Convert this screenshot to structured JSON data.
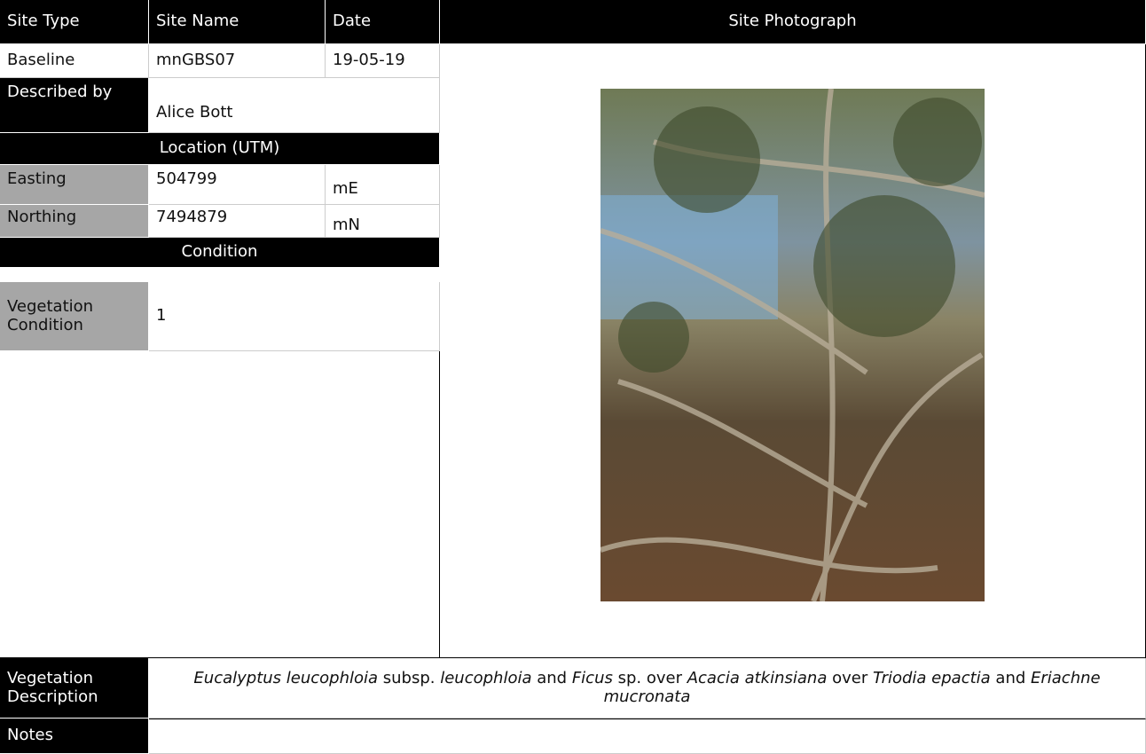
{
  "header": {
    "site_type": "Site Type",
    "site_name": "Site Name",
    "date": "Date",
    "site_photograph": "Site Photograph"
  },
  "site": {
    "type": "Baseline",
    "name": "mnGBS07",
    "date": "19-05-19"
  },
  "described_by": {
    "label": "Described by",
    "value": "Alice Bott"
  },
  "location": {
    "title": "Location (UTM)",
    "easting": {
      "label": "Easting",
      "value": "504799",
      "unit": "mE"
    },
    "northing": {
      "label": "Northing",
      "value": "7494879",
      "unit": "mN"
    }
  },
  "condition": {
    "title": "Condition",
    "label": "Vegetation Condition",
    "value": "1"
  },
  "vegetation_description": {
    "label": "Vegetation Description",
    "runs": [
      {
        "text": "Eucalyptus leucophloia",
        "italic": true
      },
      {
        "text": " subsp. ",
        "italic": false
      },
      {
        "text": "leucophloia",
        "italic": true
      },
      {
        "text": " and ",
        "italic": false
      },
      {
        "text": "Ficus",
        "italic": true
      },
      {
        "text": " sp. over ",
        "italic": false
      },
      {
        "text": "Acacia atkinsiana",
        "italic": true
      },
      {
        "text": " over ",
        "italic": false
      },
      {
        "text": "Triodia epactia",
        "italic": true
      },
      {
        "text": " and ",
        "italic": false
      },
      {
        "text": "Eriachne mucronata",
        "italic": true
      }
    ]
  },
  "notes": {
    "label": "Notes"
  }
}
